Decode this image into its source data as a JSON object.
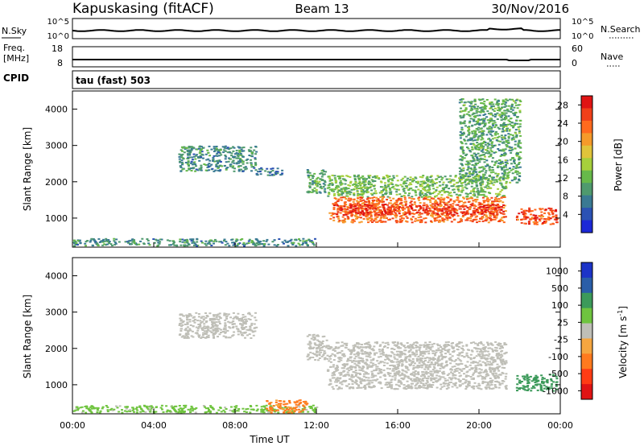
{
  "header": {
    "site": "Kapuskasing (fitACF)",
    "beam": "Beam 13",
    "date": "30/Nov/2016"
  },
  "sky_panel": {
    "left_label": "N.Sky",
    "left_ticks": [
      "10^5",
      "10^0"
    ],
    "right_ticks": [
      "10^5",
      "10^0"
    ],
    "right_label": "N.Search"
  },
  "freq_panel": {
    "left_label_1": "Freq.",
    "left_label_2": "[MHz]",
    "left_ticks": [
      "18",
      "8"
    ],
    "right_ticks": [
      "60",
      "0"
    ],
    "right_label": "Nave"
  },
  "cpid_label": "CPID",
  "cpid_text": "tau (fast) 503",
  "colors": {
    "scale": [
      "#1c28d6",
      "#2b52b4",
      "#3a7a93",
      "#4f9a6e",
      "#67b94a",
      "#a6cf3c",
      "#e0c43a",
      "#f59a2a",
      "#ff6a1e",
      "#f0401a",
      "#e01414"
    ],
    "velocity": [
      "#e01414",
      "#ff3c14",
      "#ff7a1e",
      "#f5a640",
      "#bfbfb7",
      "#6fc43f",
      "#3c9a5a",
      "#2a5ea8",
      "#1c34c8"
    ],
    "ground_scatter": "#bfbfb7"
  },
  "chart_data": [
    {
      "type": "heatmap",
      "name": "power",
      "ylabel": "Slant Range [km]",
      "yticks": [
        "1000",
        "2000",
        "3000",
        "4000"
      ],
      "ylim": [
        200,
        4500
      ],
      "xlim": [
        0,
        24
      ],
      "colorbar": {
        "label": "Power [dB]",
        "ticks": [
          "4",
          "8",
          "12",
          "16",
          "20",
          "24",
          "28"
        ],
        "range": [
          0,
          30
        ]
      },
      "regions": [
        {
          "x": [
            0.0,
            11.9
          ],
          "y": [
            250,
            450
          ],
          "value": 8,
          "note": "near-range scatter"
        },
        {
          "x": [
            5.2,
            9.0
          ],
          "y": [
            2300,
            3000
          ],
          "value": 8
        },
        {
          "x": [
            9.0,
            10.3
          ],
          "y": [
            2200,
            2400
          ],
          "value": 6
        },
        {
          "x": [
            11.5,
            12.4
          ],
          "y": [
            1700,
            2400
          ],
          "value": 10
        },
        {
          "x": [
            12.5,
            21.3
          ],
          "y": [
            1600,
            2200
          ],
          "value": 12
        },
        {
          "x": [
            12.6,
            21.3
          ],
          "y": [
            900,
            1600
          ],
          "value": 24
        },
        {
          "x": [
            12.8,
            21.2
          ],
          "y": [
            1100,
            1400
          ],
          "value": 28
        },
        {
          "x": [
            21.8,
            23.8
          ],
          "y": [
            850,
            1300
          ],
          "value": 26
        },
        {
          "x": [
            19.0,
            22.0
          ],
          "y": [
            2000,
            4300
          ],
          "value": 10
        }
      ]
    },
    {
      "type": "heatmap",
      "name": "velocity",
      "ylabel": "Slant Range [km]",
      "yticks": [
        "1000",
        "2000",
        "3000",
        "4000"
      ],
      "ylim": [
        200,
        4500
      ],
      "xlim": [
        0,
        24
      ],
      "xlabel": "Time UT",
      "xticks": [
        "00:00",
        "04:00",
        "08:00",
        "12:00",
        "16:00",
        "20:00",
        "00:00"
      ],
      "colorbar": {
        "label": "Velocity [m s-1]",
        "label_main": "Velocity [m s",
        "label_exp": "-1",
        "label_end": "]",
        "ticks": [
          "1000",
          "500",
          "100",
          "25",
          "-25",
          "-100",
          "-500",
          "-1000"
        ],
        "range": [
          -1000,
          1000
        ]
      },
      "regions": [
        {
          "x": [
            0.0,
            12.0
          ],
          "y": [
            250,
            450
          ],
          "value": 50,
          "note": "near-range, mostly weak positive"
        },
        {
          "x": [
            9.5,
            11.5
          ],
          "y": [
            250,
            600
          ],
          "value": -120
        },
        {
          "x": [
            5.2,
            9.0
          ],
          "y": [
            2300,
            3000
          ],
          "value": 0,
          "ground_scatter": true
        },
        {
          "x": [
            11.5,
            12.5
          ],
          "y": [
            1700,
            2400
          ],
          "value": 0,
          "ground_scatter": true
        },
        {
          "x": [
            12.5,
            21.3
          ],
          "y": [
            900,
            2200
          ],
          "value": 0,
          "ground_scatter": true
        },
        {
          "x": [
            21.8,
            23.8
          ],
          "y": [
            850,
            1300
          ],
          "value": 150
        }
      ]
    }
  ]
}
